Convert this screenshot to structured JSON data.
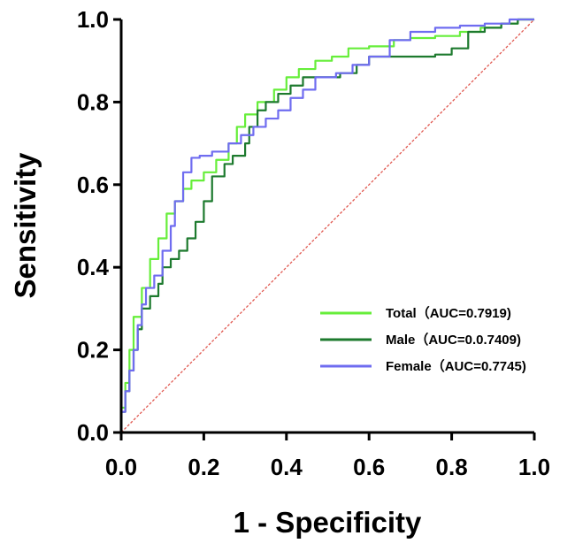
{
  "chart_data": {
    "type": "line",
    "title": "",
    "xlabel": "1 - Specificity",
    "ylabel": "Sensitivity",
    "xlim": [
      0,
      1
    ],
    "ylim": [
      0,
      1
    ],
    "grid": false,
    "legend_position": "bottom-right",
    "x_ticks": [
      "0.0",
      "0.2",
      "0.4",
      "0.6",
      "0.8",
      "1.0"
    ],
    "y_ticks": [
      "0.0",
      "0.2",
      "0.4",
      "0.6",
      "0.8",
      "1.0"
    ],
    "reference_line": {
      "name": "diagonal",
      "color": "#e0574f",
      "points": [
        [
          0,
          0
        ],
        [
          1,
          1
        ]
      ]
    },
    "series": [
      {
        "name": "Total（AUC=0.7919)",
        "color": "#66ee3a",
        "points": [
          [
            0,
            0
          ],
          [
            0.01,
            0.06
          ],
          [
            0.02,
            0.12
          ],
          [
            0.03,
            0.2
          ],
          [
            0.05,
            0.28
          ],
          [
            0.07,
            0.35
          ],
          [
            0.09,
            0.42
          ],
          [
            0.11,
            0.47
          ],
          [
            0.13,
            0.53
          ],
          [
            0.15,
            0.56
          ],
          [
            0.17,
            0.59
          ],
          [
            0.2,
            0.61
          ],
          [
            0.23,
            0.63
          ],
          [
            0.26,
            0.66
          ],
          [
            0.28,
            0.7
          ],
          [
            0.3,
            0.74
          ],
          [
            0.33,
            0.77
          ],
          [
            0.37,
            0.8
          ],
          [
            0.4,
            0.83
          ],
          [
            0.43,
            0.86
          ],
          [
            0.47,
            0.88
          ],
          [
            0.51,
            0.9
          ],
          [
            0.55,
            0.91
          ],
          [
            0.6,
            0.93
          ],
          [
            0.66,
            0.935
          ],
          [
            0.7,
            0.95
          ],
          [
            0.76,
            0.955
          ],
          [
            0.82,
            0.96
          ],
          [
            0.87,
            0.97
          ],
          [
            0.92,
            0.98
          ],
          [
            0.96,
            0.99
          ],
          [
            1,
            1
          ]
        ]
      },
      {
        "name": "Male（AUC=0.0.7409)",
        "color": "#1d7a2e",
        "points": [
          [
            0,
            0
          ],
          [
            0.01,
            0.05
          ],
          [
            0.02,
            0.1
          ],
          [
            0.03,
            0.15
          ],
          [
            0.04,
            0.2
          ],
          [
            0.05,
            0.25
          ],
          [
            0.07,
            0.3
          ],
          [
            0.09,
            0.33
          ],
          [
            0.1,
            0.36
          ],
          [
            0.12,
            0.4
          ],
          [
            0.14,
            0.42
          ],
          [
            0.16,
            0.44
          ],
          [
            0.18,
            0.47
          ],
          [
            0.2,
            0.51
          ],
          [
            0.22,
            0.56
          ],
          [
            0.25,
            0.62
          ],
          [
            0.27,
            0.65
          ],
          [
            0.3,
            0.67
          ],
          [
            0.31,
            0.7
          ],
          [
            0.33,
            0.74
          ],
          [
            0.35,
            0.78
          ],
          [
            0.38,
            0.8
          ],
          [
            0.41,
            0.82
          ],
          [
            0.44,
            0.84
          ],
          [
            0.48,
            0.86
          ],
          [
            0.53,
            0.86
          ],
          [
            0.57,
            0.87
          ],
          [
            0.6,
            0.89
          ],
          [
            0.64,
            0.91
          ],
          [
            0.7,
            0.91
          ],
          [
            0.76,
            0.91
          ],
          [
            0.8,
            0.915
          ],
          [
            0.84,
            0.93
          ],
          [
            0.88,
            0.97
          ],
          [
            0.92,
            0.98
          ],
          [
            0.96,
            0.99
          ],
          [
            1,
            1
          ]
        ]
      },
      {
        "name": "Female（AUC=0.7745)",
        "color": "#6f6cf0",
        "points": [
          [
            0,
            0
          ],
          [
            0.01,
            0.05
          ],
          [
            0.02,
            0.1
          ],
          [
            0.03,
            0.15
          ],
          [
            0.04,
            0.2
          ],
          [
            0.05,
            0.26
          ],
          [
            0.06,
            0.31
          ],
          [
            0.08,
            0.35
          ],
          [
            0.1,
            0.38
          ],
          [
            0.12,
            0.44
          ],
          [
            0.13,
            0.5
          ],
          [
            0.15,
            0.56
          ],
          [
            0.17,
            0.63
          ],
          [
            0.19,
            0.665
          ],
          [
            0.22,
            0.67
          ],
          [
            0.26,
            0.68
          ],
          [
            0.29,
            0.7
          ],
          [
            0.32,
            0.72
          ],
          [
            0.35,
            0.74
          ],
          [
            0.38,
            0.76
          ],
          [
            0.41,
            0.78
          ],
          [
            0.44,
            0.81
          ],
          [
            0.47,
            0.83
          ],
          [
            0.52,
            0.86
          ],
          [
            0.56,
            0.87
          ],
          [
            0.6,
            0.89
          ],
          [
            0.65,
            0.91
          ],
          [
            0.7,
            0.95
          ],
          [
            0.76,
            0.97
          ],
          [
            0.82,
            0.98
          ],
          [
            0.88,
            0.985
          ],
          [
            0.94,
            0.99
          ],
          [
            1,
            1
          ]
        ]
      }
    ]
  }
}
